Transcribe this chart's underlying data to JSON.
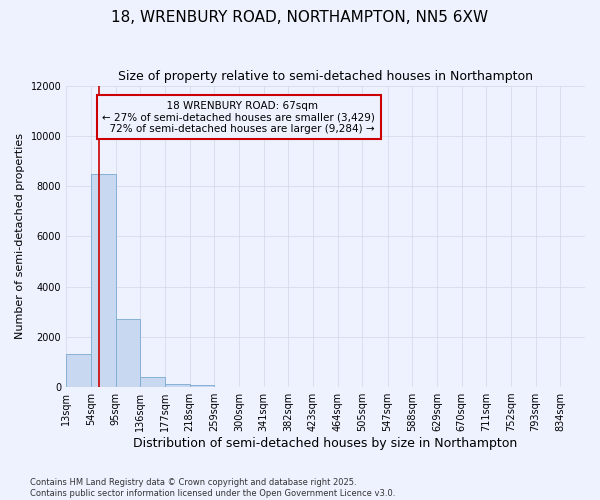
{
  "title": "18, WRENBURY ROAD, NORTHAMPTON, NN5 6XW",
  "subtitle": "Size of property relative to semi-detached houses in Northampton",
  "xlabel": "Distribution of semi-detached houses by size in Northampton",
  "ylabel": "Number of semi-detached properties",
  "property_size": 67,
  "property_label": "18 WRENBURY ROAD: 67sqm",
  "pct_smaller": 27,
  "pct_larger": 72,
  "count_smaller": 3429,
  "count_larger": 9284,
  "bin_labels": [
    "13sqm",
    "54sqm",
    "95sqm",
    "136sqm",
    "177sqm",
    "218sqm",
    "259sqm",
    "300sqm",
    "341sqm",
    "382sqm",
    "423sqm",
    "464sqm",
    "505sqm",
    "547sqm",
    "588sqm",
    "629sqm",
    "670sqm",
    "711sqm",
    "752sqm",
    "793sqm",
    "834sqm"
  ],
  "bin_edges": [
    13,
    54,
    95,
    136,
    177,
    218,
    259,
    300,
    341,
    382,
    423,
    464,
    505,
    547,
    588,
    629,
    670,
    711,
    752,
    793,
    834
  ],
  "bar_heights": [
    1300,
    8500,
    2700,
    400,
    130,
    100,
    0,
    0,
    0,
    0,
    0,
    0,
    0,
    0,
    0,
    0,
    0,
    0,
    0,
    0
  ],
  "bar_color": "#c8d8f0",
  "bar_edge_color": "#7aaad0",
  "red_line_color": "#cc0000",
  "annotation_box_color": "#cc0000",
  "background_color": "#eef2ff",
  "grid_color": "#d0d8e8",
  "ylim": [
    0,
    12000
  ],
  "yticks": [
    0,
    2000,
    4000,
    6000,
    8000,
    10000,
    12000
  ],
  "footer": "Contains HM Land Registry data © Crown copyright and database right 2025.\nContains public sector information licensed under the Open Government Licence v3.0.",
  "title_fontsize": 11,
  "subtitle_fontsize": 9,
  "ylabel_fontsize": 8,
  "xlabel_fontsize": 9,
  "tick_fontsize": 7
}
